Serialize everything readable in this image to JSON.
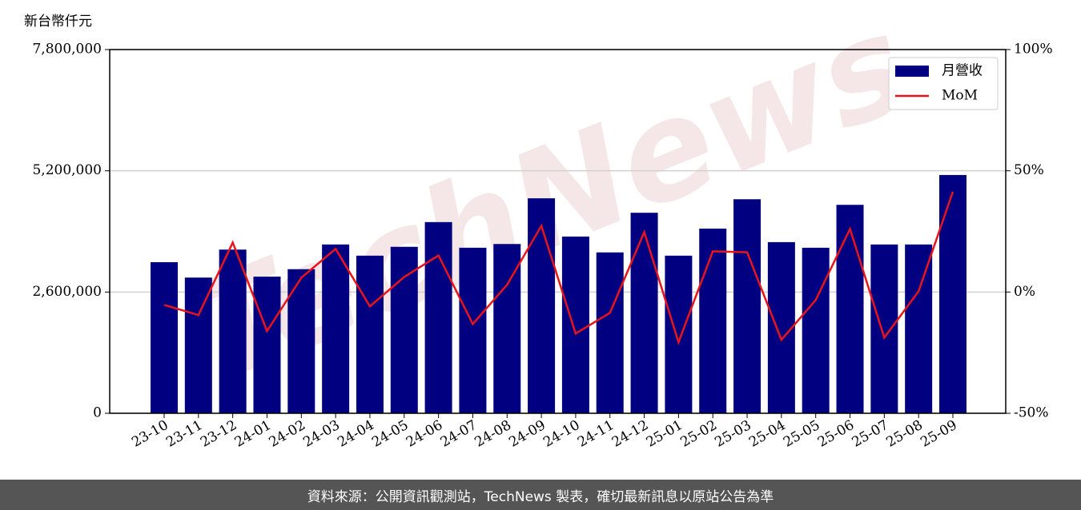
{
  "chart_data": {
    "type": "bar_line",
    "y_label": "新台幣仟元",
    "watermark": "TechNews",
    "categories": [
      "23-10",
      "23-11",
      "23-12",
      "24-01",
      "24-02",
      "24-03",
      "24-04",
      "24-05",
      "24-06",
      "24-07",
      "24-08",
      "24-09",
      "24-10",
      "24-11",
      "24-12",
      "25-01",
      "25-02",
      "25-03",
      "25-04",
      "25-05",
      "25-06",
      "25-07",
      "25-08",
      "25-09"
    ],
    "series": [
      {
        "name": "月營收",
        "type": "bar",
        "color": "#000080",
        "values": [
          3240000,
          2910000,
          3510000,
          2930000,
          3090000,
          3620000,
          3380000,
          3570000,
          4100000,
          3550000,
          3630000,
          4610000,
          3790000,
          3450000,
          4300000,
          3380000,
          3960000,
          4590000,
          3670000,
          3550000,
          4470000,
          3620000,
          3620000,
          5110000
        ]
      },
      {
        "name": "MoM",
        "type": "line",
        "axis": "y2",
        "color": "#e8141a",
        "values": [
          -5.3,
          -9.5,
          20.4,
          -16.1,
          5.9,
          17.8,
          -5.9,
          6.2,
          15.1,
          -13.2,
          3.0,
          27.3,
          -17.1,
          -8.6,
          24.7,
          -20.7,
          16.8,
          16.4,
          -19.7,
          -3.3,
          26.0,
          -18.8,
          0.3,
          41.4
        ]
      }
    ],
    "ylim": [
      0,
      7800000
    ],
    "yticks": [
      0,
      {
        "value": 2600000,
        "label": "2,600,000"
      },
      {
        "value": 5200000,
        "label": "5,200,000"
      },
      {
        "value": 7800000,
        "label": "7,800,000"
      }
    ],
    "y2lim": [
      -50,
      100
    ],
    "y2ticks": [
      {
        "value": -50,
        "label": "-50%"
      },
      {
        "value": 0,
        "label": "0%"
      },
      {
        "value": 50,
        "label": "50%"
      },
      {
        "value": 100,
        "label": "100%"
      }
    ],
    "grid": true,
    "legend": "upper right"
  },
  "footer": "資料來源：公開資訊觀測站，TechNews 製表，確切最新訊息以原站公告為準"
}
